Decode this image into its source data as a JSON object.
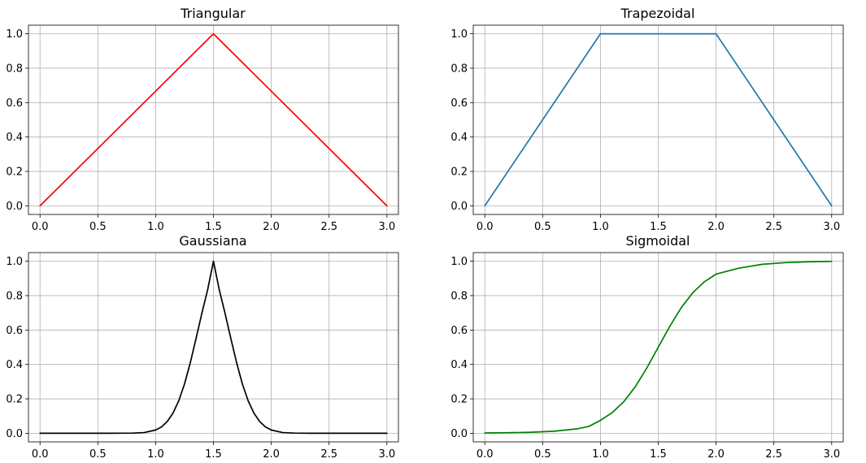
{
  "chart_data": [
    {
      "type": "line",
      "title": "Triangular",
      "xlabel": "",
      "ylabel": "",
      "xlim": [
        -0.1,
        3.1
      ],
      "ylim": [
        -0.05,
        1.05
      ],
      "xticks": [
        0.0,
        0.5,
        1.0,
        1.5,
        2.0,
        2.5,
        3.0
      ],
      "xtick_labels": [
        "0.0",
        "0.5",
        "1.0",
        "1.5",
        "2.0",
        "2.5",
        "3.0"
      ],
      "yticks": [
        0.0,
        0.2,
        0.4,
        0.6,
        0.8,
        1.0
      ],
      "ytick_labels": [
        "0.0",
        "0.2",
        "0.4",
        "0.6",
        "0.8",
        "1.0"
      ],
      "grid": true,
      "series": [
        {
          "color": "#ff0000",
          "x": [
            0.0,
            1.5,
            3.0
          ],
          "y": [
            0.0,
            1.0,
            0.0
          ]
        }
      ]
    },
    {
      "type": "line",
      "title": "Trapezoidal",
      "xlabel": "",
      "ylabel": "",
      "xlim": [
        -0.1,
        3.1
      ],
      "ylim": [
        -0.05,
        1.05
      ],
      "xticks": [
        0.0,
        0.5,
        1.0,
        1.5,
        2.0,
        2.5,
        3.0
      ],
      "xtick_labels": [
        "0.0",
        "0.5",
        "1.0",
        "1.5",
        "2.0",
        "2.5",
        "3.0"
      ],
      "yticks": [
        0.0,
        0.2,
        0.4,
        0.6,
        0.8,
        1.0
      ],
      "ytick_labels": [
        "0.0",
        "0.2",
        "0.4",
        "0.6",
        "0.8",
        "1.0"
      ],
      "grid": true,
      "series": [
        {
          "color": "#1f77b4",
          "x": [
            0.0,
            1.0,
            2.0,
            3.0
          ],
          "y": [
            0.0,
            1.0,
            1.0,
            0.0
          ]
        }
      ]
    },
    {
      "type": "line",
      "title": "Gaussiana",
      "xlabel": "",
      "ylabel": "",
      "xlim": [
        -0.1,
        3.1
      ],
      "ylim": [
        -0.05,
        1.05
      ],
      "xticks": [
        0.0,
        0.5,
        1.0,
        1.5,
        2.0,
        2.5,
        3.0
      ],
      "xtick_labels": [
        "0.0",
        "0.5",
        "1.0",
        "1.5",
        "2.0",
        "2.5",
        "3.0"
      ],
      "yticks": [
        0.0,
        0.2,
        0.4,
        0.6,
        0.8,
        1.0
      ],
      "ytick_labels": [
        "0.0",
        "0.2",
        "0.4",
        "0.6",
        "0.8",
        "1.0"
      ],
      "grid": true,
      "series": [
        {
          "color": "#000000",
          "x": [
            0.0,
            0.2,
            0.4,
            0.6,
            0.8,
            0.9,
            1.0,
            1.05,
            1.1,
            1.15,
            1.2,
            1.25,
            1.3,
            1.35,
            1.4,
            1.45,
            1.5,
            1.55,
            1.6,
            1.65,
            1.7,
            1.75,
            1.8,
            1.85,
            1.9,
            1.95,
            2.0,
            2.1,
            2.2,
            2.4,
            2.6,
            2.8,
            3.0
          ],
          "y": [
            0.0,
            0.0,
            0.0,
            0.0,
            0.001,
            0.004,
            0.019,
            0.037,
            0.068,
            0.117,
            0.189,
            0.287,
            0.411,
            0.552,
            0.698,
            0.835,
            1.0,
            0.835,
            0.698,
            0.552,
            0.411,
            0.287,
            0.189,
            0.117,
            0.068,
            0.037,
            0.019,
            0.004,
            0.001,
            0.0,
            0.0,
            0.0,
            0.0
          ]
        }
      ]
    },
    {
      "type": "line",
      "title": "Sigmoidal",
      "xlabel": "",
      "ylabel": "",
      "xlim": [
        -0.1,
        3.1
      ],
      "ylim": [
        -0.05,
        1.05
      ],
      "xticks": [
        0.0,
        0.5,
        1.0,
        1.5,
        2.0,
        2.5,
        3.0
      ],
      "xtick_labels": [
        "0.0",
        "0.5",
        "1.0",
        "1.5",
        "2.0",
        "2.5",
        "3.0"
      ],
      "yticks": [
        0.0,
        0.2,
        0.4,
        0.6,
        0.8,
        1.0
      ],
      "ytick_labels": [
        "0.0",
        "0.2",
        "0.4",
        "0.6",
        "0.8",
        "1.0"
      ],
      "grid": true,
      "series": [
        {
          "color": "#008000",
          "x": [
            0.0,
            0.2,
            0.4,
            0.6,
            0.8,
            0.9,
            1.0,
            1.1,
            1.2,
            1.3,
            1.4,
            1.5,
            1.6,
            1.7,
            1.8,
            1.9,
            2.0,
            2.2,
            2.4,
            2.6,
            2.8,
            3.0
          ],
          "y": [
            0.002,
            0.003,
            0.006,
            0.012,
            0.026,
            0.04,
            0.075,
            0.119,
            0.182,
            0.269,
            0.378,
            0.5,
            0.622,
            0.731,
            0.818,
            0.881,
            0.925,
            0.96,
            0.982,
            0.992,
            0.997,
            0.999
          ]
        }
      ]
    }
  ]
}
